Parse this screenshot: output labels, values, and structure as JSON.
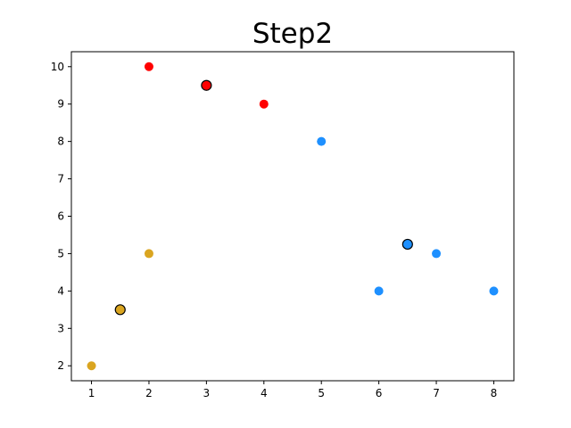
{
  "chart_data": {
    "type": "scatter",
    "title": "Step2",
    "xlabel": "",
    "ylabel": "",
    "xlim": [
      0.65,
      8.35
    ],
    "ylim": [
      1.6,
      10.4
    ],
    "xticks": [
      1,
      2,
      3,
      4,
      5,
      6,
      7,
      8
    ],
    "yticks": [
      2,
      3,
      4,
      5,
      6,
      7,
      8,
      9,
      10
    ],
    "grid": false,
    "series": [
      {
        "color": "#ff0000",
        "points": [
          {
            "x": 2,
            "y": 10
          },
          {
            "x": 3,
            "y": 9.5
          },
          {
            "x": 4,
            "y": 9
          }
        ]
      },
      {
        "color": "#1e90ff",
        "points": [
          {
            "x": 5,
            "y": 8
          },
          {
            "x": 6,
            "y": 4
          },
          {
            "x": 7,
            "y": 5
          },
          {
            "x": 8,
            "y": 4
          }
        ]
      },
      {
        "color": "#daa520",
        "points": [
          {
            "x": 1,
            "y": 2
          },
          {
            "x": 2,
            "y": 5
          }
        ]
      }
    ],
    "centroids": [
      {
        "x": 3,
        "y": 9.5,
        "color": "#ff0000",
        "edge": "#000000"
      },
      {
        "x": 6.5,
        "y": 5.25,
        "color": "#1e90ff",
        "edge": "#000000"
      },
      {
        "x": 1.5,
        "y": 3.5,
        "color": "#daa520",
        "edge": "#000000"
      }
    ]
  }
}
